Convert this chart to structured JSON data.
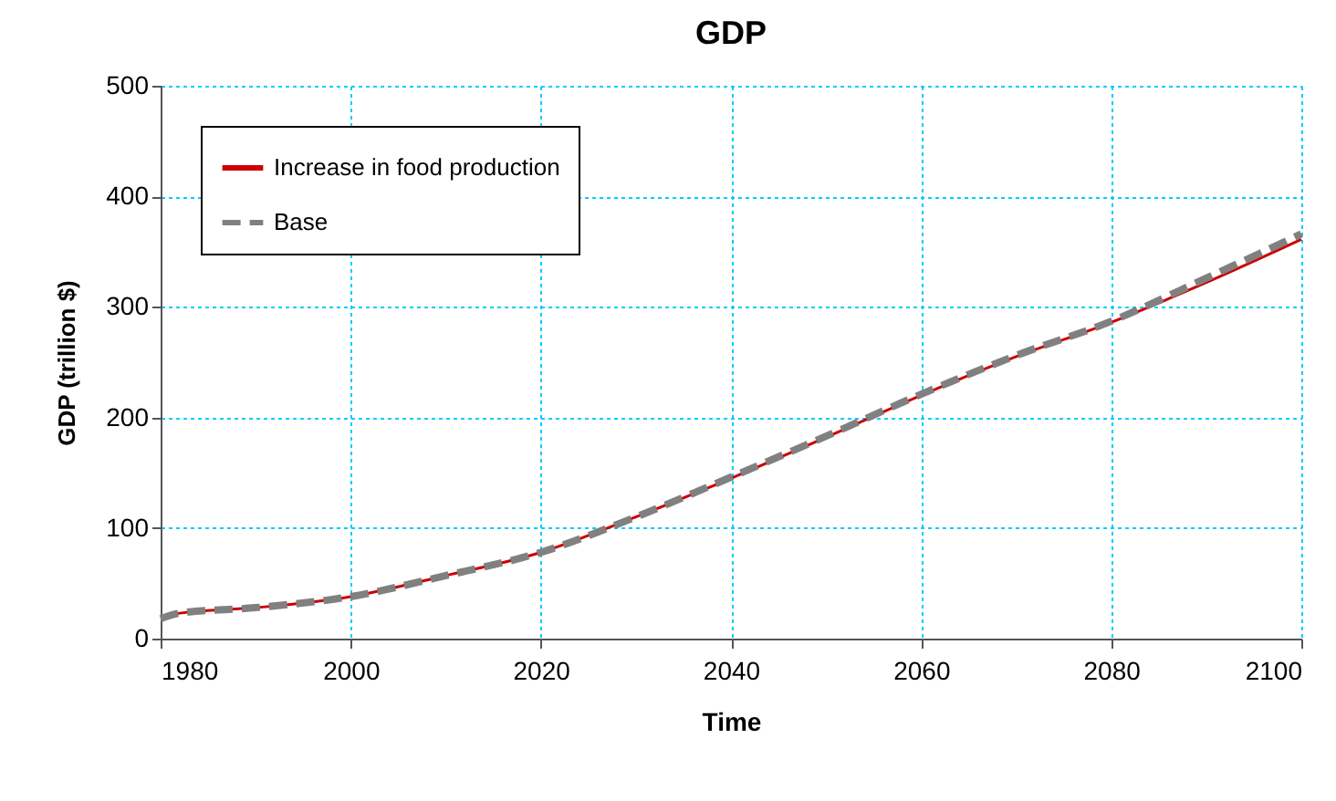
{
  "chart_data": {
    "type": "line",
    "title": "GDP",
    "xlabel": "Time",
    "ylabel": "GDP (trillion $)",
    "x": [
      1980,
      1982,
      1990,
      2000,
      2010,
      2020,
      2030,
      2040,
      2050,
      2060,
      2070,
      2080,
      2090,
      2100
    ],
    "series": [
      {
        "name": "Increase in food production",
        "color": "#cc0000",
        "line_style": "solid",
        "values": [
          20,
          23,
          28,
          38,
          57,
          78,
          110,
          145,
          182,
          220,
          255,
          286,
          322,
          361
        ]
      },
      {
        "name": "Base",
        "color": "#808080",
        "line_style": "dashed",
        "values": [
          18,
          23,
          28,
          38,
          57,
          78,
          110,
          146,
          183,
          221,
          256,
          287,
          326,
          366
        ]
      }
    ],
    "xlim": [
      1980,
      2100
    ],
    "xticks": [
      1980,
      2000,
      2020,
      2040,
      2060,
      2080,
      2100
    ],
    "ylim": [
      0,
      500
    ],
    "yticks": [
      0,
      100,
      200,
      300,
      400,
      500
    ],
    "grid": true,
    "legend": "top left",
    "marker": "none"
  }
}
